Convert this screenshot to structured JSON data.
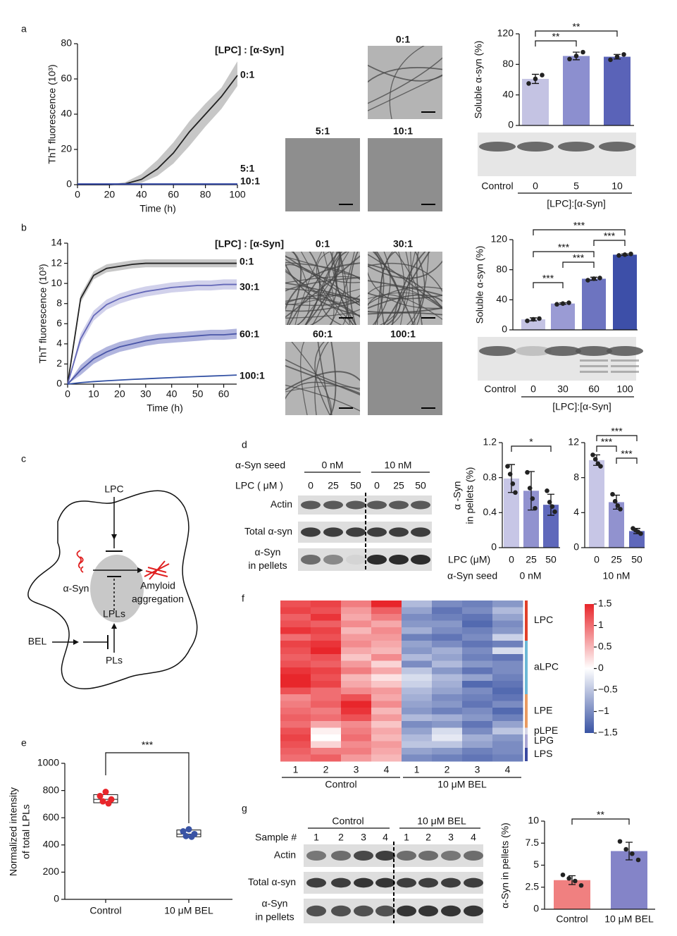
{
  "panel_labels": [
    "a",
    "b",
    "c",
    "d",
    "e",
    "f",
    "g"
  ],
  "chart_data": [
    {
      "type": "line",
      "ylabel": "ThT fluorescence (10³)",
      "xlabel": "Time (h)",
      "legend_title": "[LPC] : [α-Syn]",
      "x": [
        0,
        10,
        20,
        30,
        40,
        50,
        60,
        70,
        80,
        90,
        100
      ],
      "xlim": [
        0,
        100
      ],
      "xticks": [
        0,
        20,
        40,
        60,
        80,
        100
      ],
      "ylim": [
        0,
        80
      ],
      "yticks": [
        0,
        20,
        40,
        60,
        80
      ],
      "series": [
        {
          "name": "0:1",
          "color": "#222222",
          "band_color": "#bdbdbd",
          "values": [
            0,
            0,
            0,
            0.5,
            3,
            9,
            18,
            30,
            40,
            50,
            62
          ],
          "lower": [
            0,
            0,
            0,
            0,
            1,
            5,
            12,
            22,
            33,
            43,
            56
          ],
          "upper": [
            0,
            0,
            0,
            1.5,
            6,
            14,
            24,
            36,
            46,
            55,
            70
          ]
        },
        {
          "name": "5:1",
          "color": "#4e5fb0",
          "values": [
            0.4,
            0.4,
            0.4,
            0.4,
            0.4,
            0.4,
            0.4,
            0.4,
            0.4,
            0.4,
            0.4
          ]
        },
        {
          "name": "10:1",
          "color": "#2b3f9e",
          "values": [
            0.3,
            0.3,
            0.3,
            0.3,
            0.3,
            0.3,
            0.3,
            0.3,
            0.3,
            0.3,
            0.3
          ]
        }
      ]
    },
    {
      "type": "bar",
      "ylabel": "Soluble α-syn (%)",
      "categories": [
        "0",
        "5",
        "10"
      ],
      "gel_control_label": "Control",
      "xlabel": "[LPC]:[α-Syn]",
      "values": [
        61,
        91,
        90
      ],
      "errors": [
        6,
        5,
        3
      ],
      "points": [
        [
          55,
          61,
          66
        ],
        [
          87,
          91,
          96
        ],
        [
          86,
          90,
          93
        ]
      ],
      "colors": [
        "#c4c3e3",
        "#8c8fcf",
        "#5a63b8"
      ],
      "ylim": [
        0,
        120
      ],
      "yticks": [
        0,
        40,
        80,
        120
      ],
      "significance": [
        "**",
        "**"
      ]
    },
    {
      "type": "line",
      "ylabel": "ThT fluorescence (10³)",
      "xlabel": "Time (h)",
      "legend_title": "[LPC] : [α-Syn]",
      "x": [
        0,
        5,
        10,
        15,
        20,
        25,
        30,
        35,
        40,
        45,
        50,
        55,
        60,
        65
      ],
      "xlim": [
        0,
        65
      ],
      "xticks": [
        0,
        10,
        20,
        30,
        40,
        50,
        60
      ],
      "ylim": [
        0,
        14
      ],
      "yticks": [
        0,
        2,
        4,
        6,
        8,
        10,
        12,
        14
      ],
      "series": [
        {
          "name": "0:1",
          "color": "#222222",
          "band_color": "#bdbdbd",
          "values": [
            0,
            8.5,
            10.8,
            11.5,
            11.7,
            11.9,
            12,
            12,
            12,
            12,
            12,
            12,
            12,
            12
          ],
          "lower": [
            0,
            8.1,
            10.4,
            11.1,
            11.3,
            11.5,
            11.6,
            11.6,
            11.6,
            11.6,
            11.6,
            11.6,
            11.6,
            11.6
          ],
          "upper": [
            0,
            8.9,
            11.2,
            11.9,
            12.1,
            12.3,
            12.4,
            12.4,
            12.4,
            12.4,
            12.4,
            12.4,
            12.4,
            12.4
          ]
        },
        {
          "name": "30:1",
          "color": "#6468b8",
          "band_color": "#c9c9e8",
          "values": [
            0,
            4.5,
            6.8,
            7.9,
            8.5,
            8.9,
            9.2,
            9.4,
            9.6,
            9.7,
            9.8,
            9.8,
            9.9,
            9.9
          ],
          "lower": [
            0,
            4,
            6.3,
            7.4,
            8,
            8.4,
            8.7,
            8.9,
            9.1,
            9.2,
            9.3,
            9.3,
            9.4,
            9.4
          ],
          "upper": [
            0,
            5,
            7.3,
            8.4,
            9,
            9.4,
            9.7,
            9.9,
            10.1,
            10.2,
            10.3,
            10.3,
            10.4,
            10.4
          ]
        },
        {
          "name": "60:1",
          "color": "#4a56a8",
          "band_color": "#a3a8d8",
          "values": [
            0,
            1.4,
            2.5,
            3.2,
            3.7,
            4,
            4.3,
            4.5,
            4.6,
            4.7,
            4.8,
            4.9,
            4.9,
            5
          ],
          "lower": [
            0,
            0.9,
            2,
            2.7,
            3.2,
            3.5,
            3.8,
            4,
            4.1,
            4.2,
            4.3,
            4.4,
            4.4,
            4.5
          ],
          "upper": [
            0,
            1.9,
            3,
            3.7,
            4.2,
            4.5,
            4.8,
            5,
            5.1,
            5.2,
            5.3,
            5.4,
            5.4,
            5.5
          ]
        },
        {
          "name": "100:1",
          "color": "#3452a4",
          "values": [
            0,
            0.15,
            0.25,
            0.33,
            0.4,
            0.47,
            0.53,
            0.59,
            0.65,
            0.7,
            0.75,
            0.8,
            0.85,
            0.9
          ]
        }
      ]
    },
    {
      "type": "bar",
      "ylabel": "Soluble α-syn (%)",
      "categories": [
        "0",
        "30",
        "60",
        "100"
      ],
      "gel_control_label": "Control",
      "xlabel": "[LPC]:[α-Syn]",
      "values": [
        14,
        35,
        68,
        100
      ],
      "errors": [
        2,
        1,
        2,
        1
      ],
      "points": [
        [
          12,
          14,
          15
        ],
        [
          34,
          35,
          36
        ],
        [
          66,
          68,
          69
        ],
        [
          99,
          100,
          101
        ]
      ],
      "colors": [
        "#c4c3e3",
        "#9a9bd4",
        "#6d74c0",
        "#3d4fa8"
      ],
      "ylim": [
        0,
        120
      ],
      "yticks": [
        0,
        40,
        80,
        120
      ],
      "significance": [
        "***",
        "***",
        "***",
        "***",
        "***"
      ]
    },
    {
      "type": "bar",
      "ylabel": [
        "α -Syn",
        "in pellets (%)"
      ],
      "categories": [
        "0",
        "25",
        "50"
      ],
      "xlabel": "LPC (μM)",
      "group_title": "α-Syn seed",
      "group": "0 nM",
      "values": [
        0.79,
        0.65,
        0.49
      ],
      "errors": [
        0.16,
        0.22,
        0.12
      ],
      "points": [
        [
          0.93,
          0.84,
          0.73,
          0.63
        ],
        [
          0.86,
          0.68,
          0.56,
          0.45
        ],
        [
          0.65,
          0.52,
          0.47,
          0.41
        ]
      ],
      "colors": [
        "#c7c6e6",
        "#9192cf",
        "#5f68bb"
      ],
      "ylim": [
        0,
        1.2
      ],
      "yticks": [
        0,
        0.4,
        0.8,
        1.2
      ],
      "significance": [
        "*"
      ]
    },
    {
      "type": "bar",
      "categories": [
        "0",
        "25",
        "50"
      ],
      "group": "10 nM",
      "values": [
        10,
        5.2,
        1.9
      ],
      "errors": [
        0.6,
        0.8,
        0.3
      ],
      "points": [
        [
          10.6,
          10.1,
          9.6,
          9.3
        ],
        [
          6.1,
          5.3,
          4.8,
          4.4
        ],
        [
          2.2,
          2,
          1.8,
          1.6
        ]
      ],
      "colors": [
        "#c7c6e6",
        "#9192cf",
        "#5f68bb"
      ],
      "ylim": [
        0,
        12
      ],
      "yticks": [
        0,
        4,
        8,
        12
      ],
      "significance": [
        "***",
        "***",
        "***"
      ]
    },
    {
      "type": "box",
      "ylabel": [
        "Normalized intensity",
        "of total LPLs"
      ],
      "categories": [
        "Control",
        "10 μM BEL"
      ],
      "boxes": [
        {
          "q1": 710,
          "median": 735,
          "q3": 770,
          "points": [
            790,
            760,
            735,
            720,
            705
          ],
          "color": "#e8262b"
        },
        {
          "q1": 460,
          "median": 480,
          "q3": 510,
          "points": [
            515,
            500,
            480,
            465,
            460
          ],
          "color": "#3953a4"
        }
      ],
      "ylim": [
        0,
        1000
      ],
      "yticks": [
        0,
        200,
        400,
        600,
        800,
        1000
      ],
      "significance": [
        "***"
      ]
    },
    {
      "type": "heatmap",
      "zlim": [
        -1.5,
        1.5
      ],
      "colormap": [
        "#3953a4",
        "#ffffff",
        "#e8262b"
      ],
      "colorbar_ticks": [
        1.5,
        1,
        0.5,
        0,
        {
          "value": -0.5,
          "label": "−0.5"
        },
        {
          "value": -1,
          "label": "−1"
        },
        {
          "value": -1.5,
          "label": "−1.5"
        }
      ],
      "column_groups": [
        {
          "name": "Control",
          "columns": [
            "1",
            "2",
            "3",
            "4"
          ]
        },
        {
          "name": "10 μM BEL",
          "columns": [
            "1",
            "2",
            "3",
            "4"
          ]
        }
      ],
      "groups": [
        {
          "name": "LPC",
          "color": "#e0402a",
          "values": [
            [
              1.2,
              1.3,
              0.9,
              1.5,
              -0.6,
              -1,
              -1.1,
              -0.9
            ],
            [
              1.3,
              1.2,
              0.7,
              1.1,
              -0.8,
              -1.2,
              -1,
              -0.6
            ],
            [
              1.1,
              1.4,
              0.6,
              0.9,
              -1,
              -1.1,
              -1.2,
              -0.8
            ],
            [
              1.2,
              1.1,
              0.8,
              0.6,
              -0.9,
              -0.9,
              -1.3,
              -1
            ],
            [
              1.4,
              1.3,
              0.5,
              0.8,
              -0.7,
              -1,
              -1.1,
              -0.9
            ],
            [
              1,
              1.2,
              0.7,
              0.7,
              -1.1,
              -1.2,
              -1,
              -0.4
            ]
          ]
        },
        {
          "name": "aLPC",
          "color": "#6cb8d6",
          "values": [
            [
              1.3,
              1.4,
              0.8,
              0.6,
              -0.8,
              -1,
              -1.2,
              -1.1
            ],
            [
              1.2,
              1.5,
              0.6,
              0.5,
              -0.9,
              -0.7,
              -1,
              -0.3
            ],
            [
              1.1,
              1.2,
              0.4,
              0.8,
              -0.6,
              -0.8,
              -1.1,
              -1.2
            ],
            [
              1.2,
              1.1,
              0.7,
              0.3,
              -1,
              -0.6,
              -0.9,
              -1
            ],
            [
              1.4,
              1.3,
              0.9,
              0.6,
              -0.5,
              -0.9,
              -1.2,
              -1
            ],
            [
              1.5,
              1.2,
              0.5,
              0.2,
              -0.3,
              -0.6,
              -0.8,
              -1.1
            ],
            [
              1.5,
              1.3,
              0.6,
              0.4,
              -0.4,
              -0.7,
              -1.3,
              -1.2
            ],
            [
              1.2,
              1,
              0.8,
              0.7,
              -0.6,
              -0.8,
              -1,
              -1.3
            ]
          ]
        },
        {
          "name": "LPE",
          "color": "#e89a62",
          "values": [
            [
              0.8,
              1,
              1.2,
              0.6,
              -0.7,
              -1,
              -1.1,
              -1.2
            ],
            [
              0.9,
              1.1,
              1.5,
              0.8,
              -0.8,
              -0.9,
              -1.2,
              -1
            ],
            [
              1,
              0.9,
              1.4,
              0.5,
              -0.9,
              -1.1,
              -1,
              -1.3
            ],
            [
              1.1,
              1,
              1.2,
              0.7,
              -0.6,
              -0.7,
              -0.9,
              -1.1
            ],
            [
              1,
              0.6,
              0.8,
              0.4,
              -1,
              -0.9,
              -1.2,
              -0.8
            ]
          ]
        },
        {
          "name": "pLPE",
          "color": "#d7d7e8",
          "values": [
            [
              1.2,
              0.1,
              0.9,
              0.6,
              -0.8,
              -0.3,
              -1,
              -0.5
            ]
          ]
        },
        {
          "name": "LPG",
          "color": "#a9a6d4",
          "values": [
            [
              1.3,
              0,
              1,
              0.5,
              -0.6,
              -0.2,
              -0.7,
              -0.9
            ],
            [
              1.2,
              0.3,
              0.8,
              0.7,
              -0.5,
              -0.5,
              -0.8,
              -1
            ]
          ]
        },
        {
          "name": "LPS",
          "color": "#3b4aa0",
          "values": [
            [
              1.1,
              0.9,
              0.9,
              0.6,
              -0.8,
              -0.9,
              -1.1,
              -1
            ],
            [
              1,
              1.1,
              0.7,
              0.5,
              -1,
              -1.1,
              -1.2,
              -1.1
            ]
          ]
        }
      ]
    },
    {
      "type": "bar",
      "ylabel": "α-Syn in pellets (%)",
      "categories": [
        "Control",
        "10 μM BEL"
      ],
      "values": [
        3.3,
        6.6
      ],
      "errors": [
        0.5,
        1
      ],
      "points": [
        [
          3.9,
          3.5,
          3.2,
          2.7
        ],
        [
          7.7,
          6.8,
          6.3,
          5.6
        ]
      ],
      "colors": [
        "#f08080",
        "#8484c8"
      ],
      "ylim": [
        0,
        10
      ],
      "yticks": [
        0,
        2.5,
        5,
        7.5,
        10
      ],
      "significance": [
        "**"
      ]
    }
  ],
  "micrographs": {
    "a": [
      "0:1",
      "5:1",
      "10:1"
    ],
    "b": [
      "0:1",
      "30:1",
      "60:1",
      "100:1"
    ]
  },
  "diagram": {
    "lpc": "LPC",
    "asyn": "α-Syn",
    "amyloid": [
      "Amyloid",
      "aggregation"
    ],
    "lpls": "LPLs",
    "bel": "BEL",
    "pls": "PLs"
  },
  "blot_d": {
    "seed_label": "α-Syn seed",
    "seed_groups": [
      "0 nM",
      "10 nM"
    ],
    "lpc_label": "LPC ( μM )",
    "lanes": [
      "0",
      "25",
      "50",
      "0",
      "25",
      "50"
    ],
    "rows": [
      [
        "Actin"
      ],
      [
        "Total α-syn"
      ],
      [
        "α-Syn",
        "in pellets"
      ]
    ]
  },
  "blot_g": {
    "groups": [
      "Control",
      "10 μM BEL"
    ],
    "sample_label": "Sample #",
    "lanes": [
      "1",
      "2",
      "3",
      "4",
      "1",
      "2",
      "3",
      "4"
    ],
    "rows": [
      [
        "Actin"
      ],
      [
        "Total α-syn"
      ],
      [
        "α-Syn",
        "in pellets"
      ]
    ]
  }
}
